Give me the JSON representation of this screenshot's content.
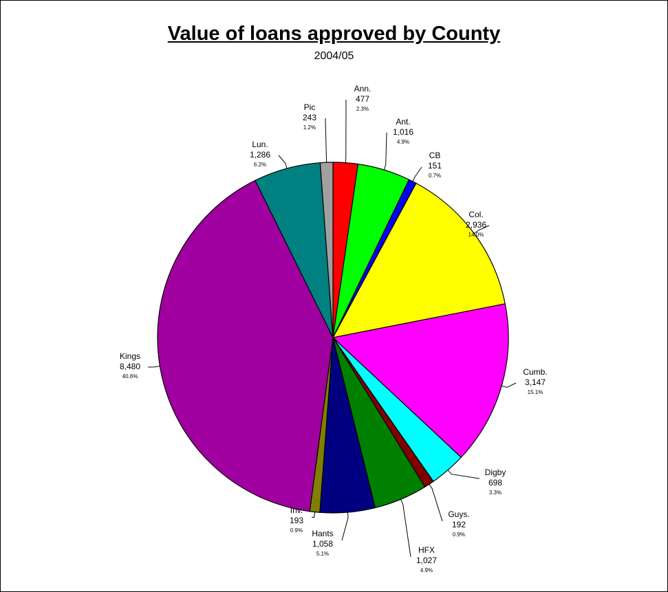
{
  "chart_data": {
    "type": "pie",
    "title": "Value of loans approved by County",
    "subtitle": "2004/05",
    "slices": [
      {
        "name": "Ann.",
        "value": 477,
        "value_label": "477",
        "percent_label": "2.3%",
        "color": "#ff0000"
      },
      {
        "name": "Ant.",
        "value": 1016,
        "value_label": "1,016",
        "percent_label": "4.9%",
        "color": "#00ff00"
      },
      {
        "name": "CB",
        "value": 151,
        "value_label": "151",
        "percent_label": "0.7%",
        "color": "#0000ff"
      },
      {
        "name": "Col.",
        "value": 2936,
        "value_label": "2,936",
        "percent_label": "14.0%",
        "color": "#ffff00"
      },
      {
        "name": "Cumb.",
        "value": 3147,
        "value_label": "3,147",
        "percent_label": "15.1%",
        "color": "#ff00ff"
      },
      {
        "name": "Digby",
        "value": 698,
        "value_label": "698",
        "percent_label": "3.3%",
        "color": "#00ffff"
      },
      {
        "name": "Guys.",
        "value": 192,
        "value_label": "192",
        "percent_label": "0.9%",
        "color": "#800000"
      },
      {
        "name": "HFX",
        "value": 1027,
        "value_label": "1,027",
        "percent_label": "4.9%",
        "color": "#008000"
      },
      {
        "name": "Hants",
        "value": 1058,
        "value_label": "1,058",
        "percent_label": "5.1%",
        "color": "#000080"
      },
      {
        "name": "Inv.",
        "value": 193,
        "value_label": "193",
        "percent_label": "0.9%",
        "color": "#808000"
      },
      {
        "name": "Kings",
        "value": 8480,
        "value_label": "8,480",
        "percent_label": "40.6%",
        "color": "#a000a0"
      },
      {
        "name": "Lun.",
        "value": 1286,
        "value_label": "1,286",
        "percent_label": "6.2%",
        "color": "#008080"
      },
      {
        "name": "Pic",
        "value": 243,
        "value_label": "243",
        "percent_label": "1.2%",
        "color": "#a0a0a0"
      }
    ],
    "start_position": "12 o'clock",
    "direction": "clockwise",
    "legend": "none",
    "data_labels": "outside with leader lines (name, value, percent)"
  }
}
